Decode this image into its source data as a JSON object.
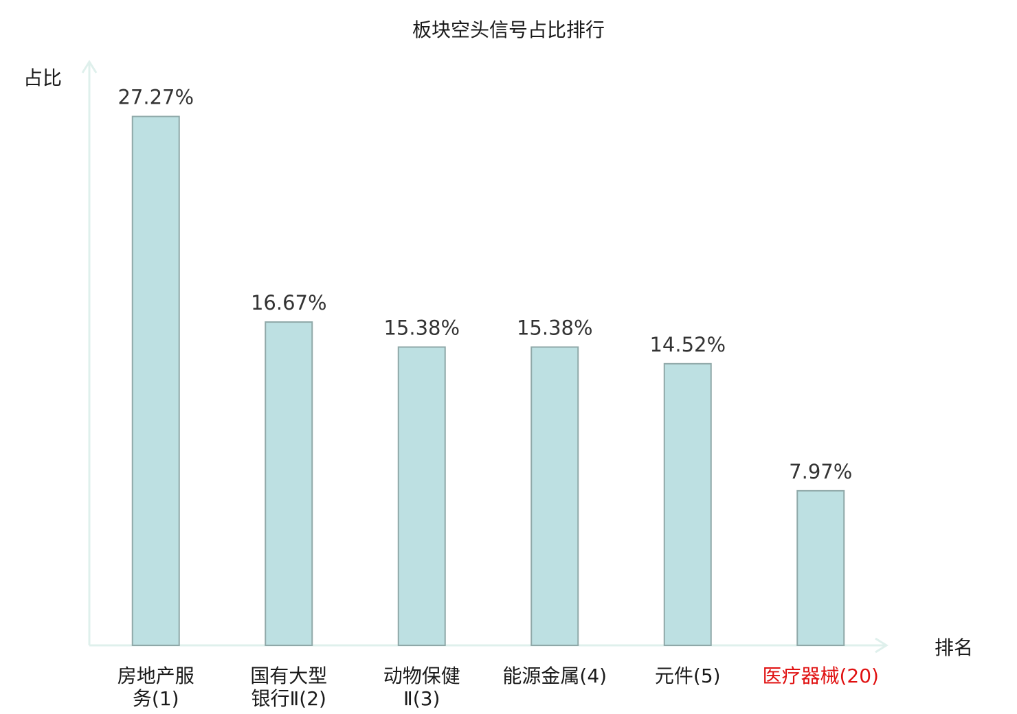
{
  "chart_data": {
    "type": "bar",
    "title": "板块空头信号占比排行",
    "xlabel": "排名",
    "ylabel": "占比",
    "ylim": [
      0,
      30
    ],
    "grid": false,
    "legend": "none",
    "categories": [
      [
        "房地产服",
        "务(1)"
      ],
      [
        "国有大型",
        "银行Ⅱ(2)"
      ],
      [
        "动物保健",
        "Ⅱ(3)"
      ],
      [
        "能源金属(4)"
      ],
      [
        "元件(5)"
      ],
      [
        "医疗器械(20)"
      ]
    ],
    "values": [
      27.27,
      16.67,
      15.38,
      15.38,
      14.52,
      7.97
    ],
    "value_labels": [
      "27.27%",
      "16.67%",
      "15.38%",
      "15.38%",
      "14.52%",
      "7.97%"
    ],
    "highlight_category_index": 5
  },
  "colors": {
    "bar_fill": "#bde0e2",
    "bar_stroke": "#8fa8a8",
    "axis": "#dff0ec",
    "text": "#1a1a1a",
    "value_label": "#333333",
    "highlight": "#e01010"
  }
}
